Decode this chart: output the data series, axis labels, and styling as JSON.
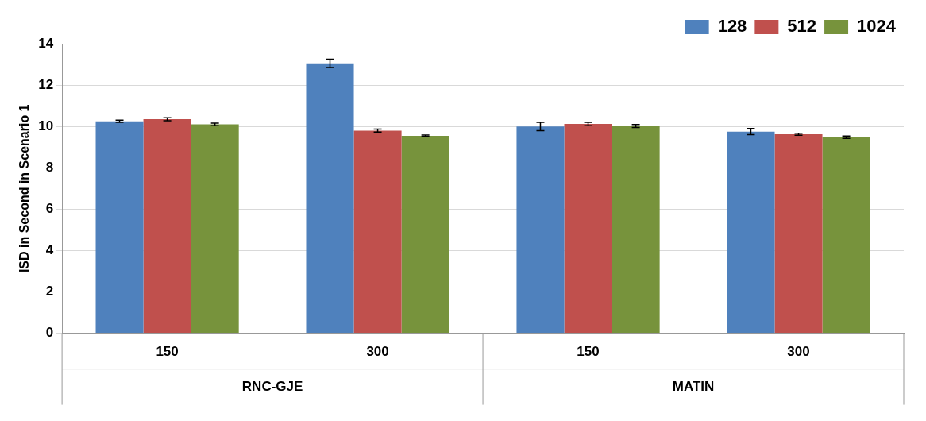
{
  "chart_data": {
    "type": "bar",
    "ylabel": "ISD in Second in Scenario 1",
    "categories": [
      "150",
      "300",
      "150",
      "300"
    ],
    "series": [
      {
        "name": "128",
        "color": "#4f81bd",
        "values": [
          10.25,
          13.05,
          10.0,
          9.75
        ],
        "errors": [
          0.05,
          0.2,
          0.2,
          0.15
        ]
      },
      {
        "name": "512",
        "color": "#c0504d",
        "values": [
          10.35,
          9.8,
          10.12,
          9.62
        ],
        "errors": [
          0.07,
          0.07,
          0.08,
          0.05
        ]
      },
      {
        "name": "1024",
        "color": "#77933c",
        "values": [
          10.1,
          9.55,
          10.02,
          9.48
        ],
        "errors": [
          0.06,
          0.03,
          0.07,
          0.06
        ]
      }
    ],
    "annotations": [
      "RNC-GJE",
      "MATIN"
    ],
    "ylim": [
      0,
      14
    ],
    "yticks": [
      0,
      2,
      4,
      6,
      8,
      10,
      12,
      14
    ],
    "grid": "y",
    "legend": "top right"
  }
}
